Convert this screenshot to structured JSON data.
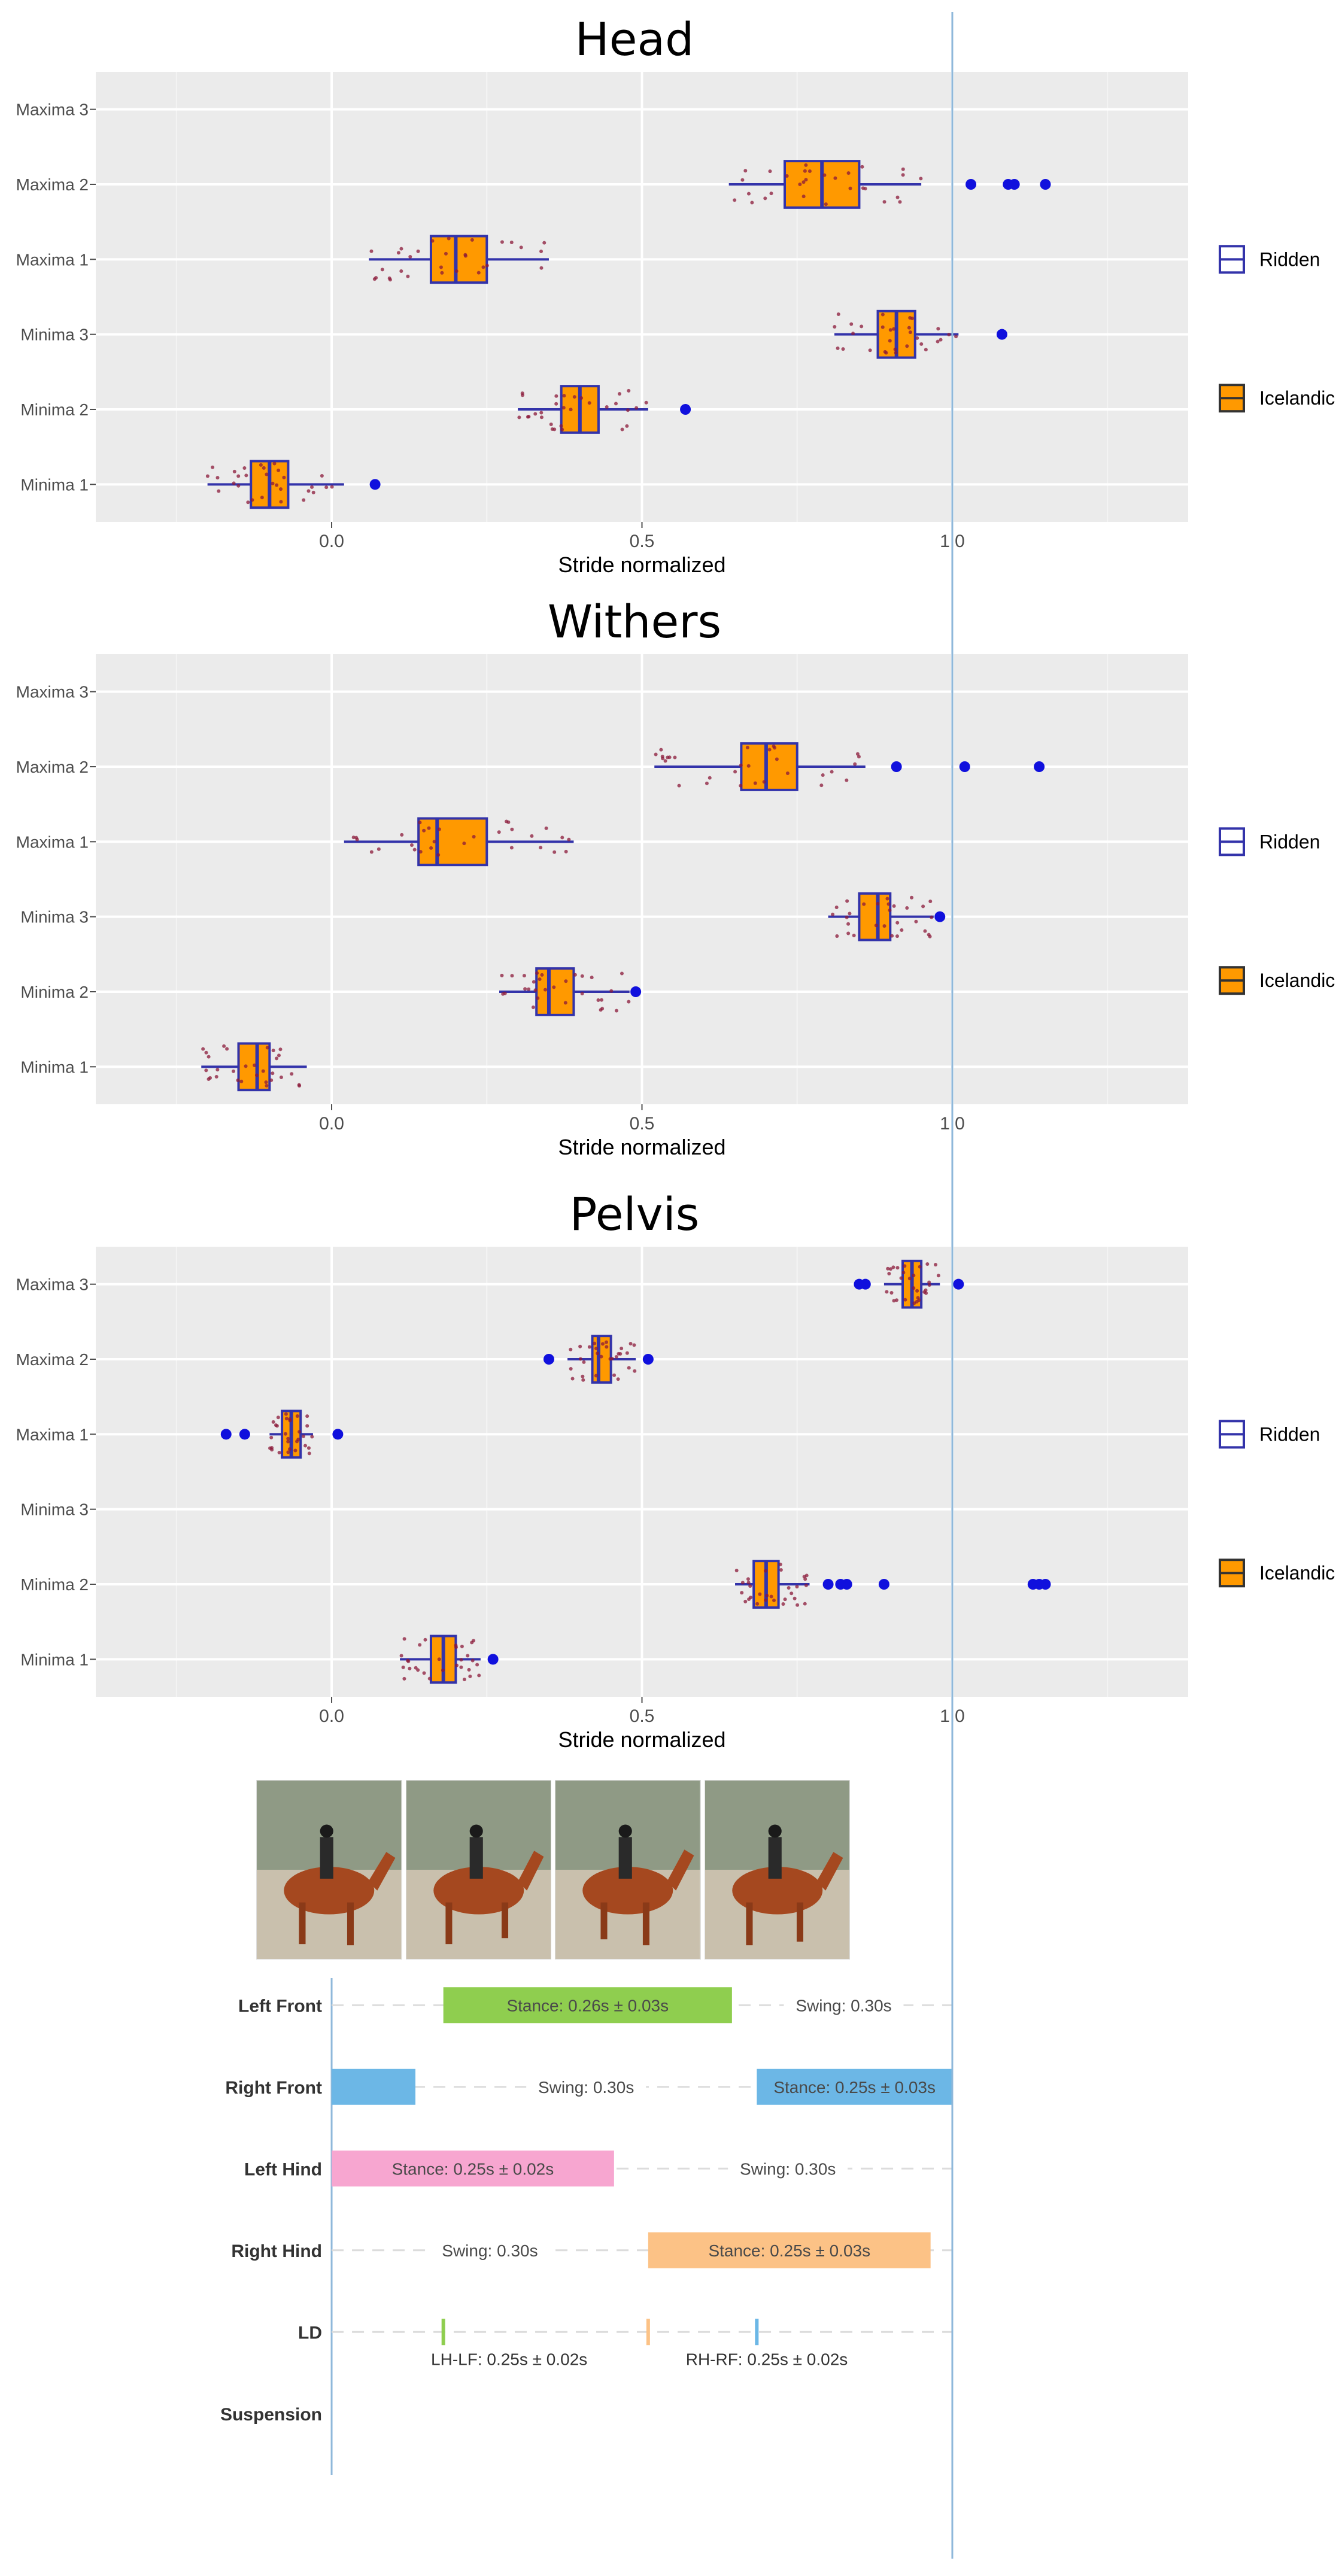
{
  "figure": {
    "colors": {
      "panel": "#ebebeb",
      "grid": "#ffffff",
      "box_fill": "#ff9900",
      "box_line": "#3333aa",
      "outlier": "#1010dd",
      "jitter": "#8b1a3a",
      "ref_line": "#8fb8da"
    }
  },
  "chart_data": [
    {
      "type": "box",
      "title": "Head",
      "xlabel": "Stride normalized",
      "xlim": [
        -0.38,
        1.38
      ],
      "xticks": [
        "0.0",
        "0.5",
        "1.0"
      ],
      "categories": [
        "Maxima 3",
        "Maxima 2",
        "Maxima 1",
        "Minima 3",
        "Minima 2",
        "Minima 1"
      ],
      "legend": [
        "Ridden",
        "Icelandic"
      ],
      "reference_x": 1.0,
      "boxes": [
        null,
        {
          "whisker_low": 0.64,
          "q1": 0.73,
          "median": 0.79,
          "q3": 0.85,
          "whisker_high": 0.95,
          "outliers": [
            1.03,
            1.09,
            1.1,
            1.15
          ]
        },
        {
          "whisker_low": 0.06,
          "q1": 0.16,
          "median": 0.2,
          "q3": 0.25,
          "whisker_high": 0.35,
          "outliers": []
        },
        {
          "whisker_low": 0.81,
          "q1": 0.88,
          "median": 0.91,
          "q3": 0.94,
          "whisker_high": 1.01,
          "outliers": [
            1.08
          ]
        },
        {
          "whisker_low": 0.3,
          "q1": 0.37,
          "median": 0.4,
          "q3": 0.43,
          "whisker_high": 0.51,
          "outliers": [
            0.57
          ]
        },
        {
          "whisker_low": -0.2,
          "q1": -0.13,
          "median": -0.1,
          "q3": -0.07,
          "whisker_high": 0.02,
          "outliers": [
            0.07
          ]
        }
      ]
    },
    {
      "type": "box",
      "title": "Withers",
      "xlabel": "Stride normalized",
      "xlim": [
        -0.38,
        1.38
      ],
      "xticks": [
        "0.0",
        "0.5",
        "1.0"
      ],
      "categories": [
        "Maxima 3",
        "Maxima 2",
        "Maxima 1",
        "Minima 3",
        "Minima 2",
        "Minima 1"
      ],
      "legend": [
        "Ridden",
        "Icelandic"
      ],
      "reference_x": 1.0,
      "boxes": [
        null,
        {
          "whisker_low": 0.52,
          "q1": 0.66,
          "median": 0.7,
          "q3": 0.75,
          "whisker_high": 0.86,
          "outliers": [
            0.91,
            1.02,
            1.14
          ]
        },
        {
          "whisker_low": 0.02,
          "q1": 0.14,
          "median": 0.17,
          "q3": 0.25,
          "whisker_high": 0.39,
          "outliers": []
        },
        {
          "whisker_low": 0.8,
          "q1": 0.85,
          "median": 0.88,
          "q3": 0.9,
          "whisker_high": 0.97,
          "outliers": [
            0.98
          ]
        },
        {
          "whisker_low": 0.27,
          "q1": 0.33,
          "median": 0.35,
          "q3": 0.39,
          "whisker_high": 0.48,
          "outliers": [
            0.49
          ]
        },
        {
          "whisker_low": -0.21,
          "q1": -0.15,
          "median": -0.12,
          "q3": -0.1,
          "whisker_high": -0.04,
          "outliers": []
        }
      ]
    },
    {
      "type": "box",
      "title": "Pelvis",
      "xlabel": "Stride normalized",
      "xlim": [
        -0.38,
        1.38
      ],
      "xticks": [
        "0.0",
        "0.5",
        "1.0"
      ],
      "categories": [
        "Maxima 3",
        "Maxima 2",
        "Maxima 1",
        "Minima 3",
        "Minima 2",
        "Minima 1"
      ],
      "legend": [
        "Ridden",
        "Icelandic"
      ],
      "reference_x": 1.0,
      "boxes": [
        {
          "whisker_low": 0.89,
          "q1": 0.92,
          "median": 0.935,
          "q3": 0.95,
          "whisker_high": 0.98,
          "outliers": [
            0.85,
            0.86,
            1.01
          ]
        },
        {
          "whisker_low": 0.38,
          "q1": 0.42,
          "median": 0.43,
          "q3": 0.45,
          "whisker_high": 0.49,
          "outliers": [
            0.35,
            0.51
          ]
        },
        {
          "whisker_low": -0.1,
          "q1": -0.08,
          "median": -0.065,
          "q3": -0.05,
          "whisker_high": -0.03,
          "outliers": [
            -0.17,
            -0.14,
            0.01
          ]
        },
        null,
        {
          "whisker_low": 0.65,
          "q1": 0.68,
          "median": 0.7,
          "q3": 0.72,
          "whisker_high": 0.77,
          "outliers": [
            0.8,
            0.82,
            0.83,
            0.89,
            1.13,
            1.14,
            1.15
          ]
        },
        {
          "whisker_low": 0.11,
          "q1": 0.16,
          "median": 0.18,
          "q3": 0.2,
          "whisker_high": 0.24,
          "outliers": [
            0.26
          ]
        }
      ]
    },
    {
      "type": "gantt",
      "xlim": [
        -0.38,
        1.38
      ],
      "rows": [
        "Left Front",
        "Right Front",
        "Left Hind",
        "Right Hind",
        "LD",
        "Suspension"
      ],
      "bars": [
        {
          "row": 0,
          "start": 0.18,
          "end": 0.645,
          "color": "#8fce4f",
          "label": "Stance: 0.26s ± 0.03s"
        },
        {
          "row": 1,
          "start": 0.0,
          "end": 0.135,
          "color": "#6cb7e6",
          "label": ""
        },
        {
          "row": 1,
          "start": 0.685,
          "end": 1.0,
          "color": "#6cb7e6",
          "label": "Stance: 0.25s ± 0.03s"
        },
        {
          "row": 2,
          "start": 0.0,
          "end": 0.455,
          "color": "#f7a6d0",
          "label": "Stance: 0.25s ± 0.02s"
        },
        {
          "row": 3,
          "start": 0.51,
          "end": 0.965,
          "color": "#fcc286",
          "label": "Stance: 0.25s ± 0.03s"
        }
      ],
      "swing_labels": [
        {
          "row": 0,
          "x": 0.825,
          "label": "Swing: 0.30s"
        },
        {
          "row": 1,
          "x": 0.41,
          "label": "Swing: 0.30s"
        },
        {
          "row": 2,
          "x": 0.735,
          "label": "Swing: 0.30s"
        },
        {
          "row": 3,
          "x": 0.255,
          "label": "Swing: 0.30s"
        }
      ],
      "ld_marks": [
        {
          "x": 0.18,
          "color": "#8fce4f"
        },
        {
          "x": 0.51,
          "color": "#fcc286"
        },
        {
          "x": 0.685,
          "color": "#6cb7e6"
        }
      ],
      "ld_labels": [
        {
          "x": 0.18,
          "label": "LH-LF: 0.25s ± 0.02s"
        },
        {
          "x": 0.595,
          "label": "RH-RF: 0.25s ± 0.02s"
        }
      ]
    }
  ]
}
